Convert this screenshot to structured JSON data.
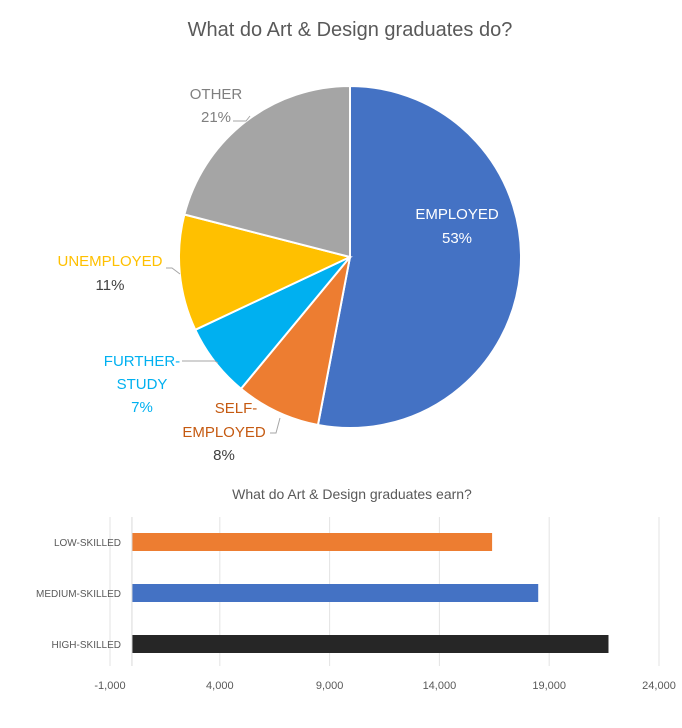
{
  "chart_data": [
    {
      "type": "pie",
      "title": "What do Art & Design graduates do?",
      "slices": [
        {
          "label": "EMPLOYED",
          "value": 53,
          "pct_label": "53%",
          "color": "#4472C4",
          "label_color": "#FFFFFF",
          "pct_color": "#FFFFFF"
        },
        {
          "label": "SELF-EMPLOYED",
          "label_lines": [
            "SELF-",
            "EMPLOYED"
          ],
          "value": 8,
          "pct_label": "8%",
          "color": "#ED7D31",
          "label_color": "#C55A11",
          "pct_color": "#404040"
        },
        {
          "label": "FURTHER-STUDY",
          "label_lines": [
            "FURTHER-",
            "STUDY"
          ],
          "value": 7,
          "pct_label": "7%",
          "color": "#00B0F0",
          "label_color": "#00B0F0",
          "pct_color": "#00B0F0"
        },
        {
          "label": "UNEMPLOYED",
          "value": 11,
          "pct_label": "11%",
          "color": "#FFC000",
          "label_color": "#FFC000",
          "pct_color": "#404040"
        },
        {
          "label": "OTHER",
          "value": 21,
          "pct_label": "21%",
          "color": "#A5A5A5",
          "label_color": "#7F7F7F",
          "pct_color": "#7F7F7F"
        }
      ]
    },
    {
      "type": "bar",
      "orientation": "horizontal",
      "title": "What do Art & Design graduates earn?",
      "categories": [
        "LOW-SKILLED",
        "MEDIUM-SKILLED",
        "HIGH-SKILLED"
      ],
      "values": [
        16400,
        18500,
        21700
      ],
      "colors": [
        "#ED7D31",
        "#4472C4",
        "#262626"
      ],
      "xlim": [
        -1000,
        24000
      ],
      "xticks": [
        -1000,
        4000,
        9000,
        14000,
        19000,
        24000
      ],
      "xtick_labels": [
        "-1,000",
        "4,000",
        "9,000",
        "14,000",
        "19,000",
        "24,000"
      ],
      "grid": true,
      "xlabel": "",
      "ylabel": ""
    }
  ]
}
